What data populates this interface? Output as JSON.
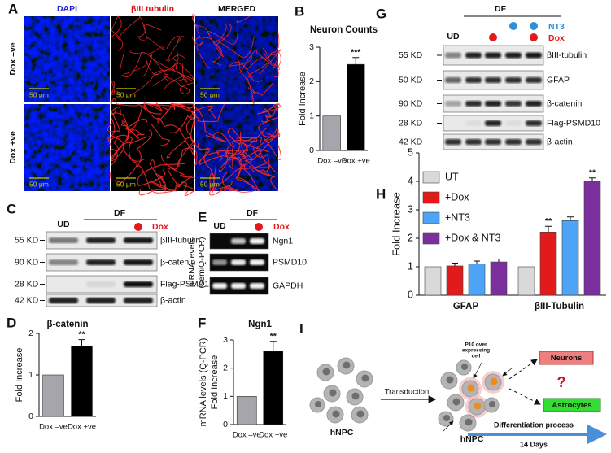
{
  "panel_labels": [
    "A",
    "B",
    "C",
    "D",
    "E",
    "F",
    "G",
    "H",
    "I"
  ],
  "microscopy": {
    "columns": [
      "DAPI",
      "βIII tubulin",
      "MERGED"
    ],
    "rows": [
      "Dox –ve",
      "Dox +ve"
    ],
    "scale_bar": "50 μm"
  },
  "blot_c": {
    "lanes": [
      "UD"
    ],
    "group": "DF",
    "treatment": "Dox",
    "rows": [
      {
        "size": "55 KD",
        "target": "βIII-tubulin"
      },
      {
        "size": "90 KD",
        "target": "β-catenin"
      },
      {
        "size": "28 KD",
        "target": "Flag-PSMD10"
      },
      {
        "size": "42 KD",
        "target": "β-actin"
      }
    ]
  },
  "gel_e": {
    "ylabel": [
      "mRNA levels",
      "(semiQ-PCR)"
    ],
    "lanes": [
      "UD"
    ],
    "group": "DF",
    "treatment": "Dox",
    "rows": [
      "Ngn1",
      "PSMD10",
      "GAPDH"
    ]
  },
  "blot_g": {
    "lanes": [
      "UD"
    ],
    "group": "DF",
    "treatments": [
      "NT3",
      "Dox"
    ],
    "rows": [
      {
        "size": "55 KD",
        "target": "βIII-tubulin"
      },
      {
        "size": "50 KD",
        "target": "GFAP"
      },
      {
        "size": "90 KD",
        "target": "β-catenin"
      },
      {
        "size": "28 KD",
        "target": "Flag-PSMD10"
      },
      {
        "size": "42 KD",
        "target": "β-actin"
      }
    ]
  },
  "chart_data": [
    {
      "type": "bar",
      "title": "Neuron Counts",
      "ylabel": [
        "Fold Increase"
      ],
      "categories": [
        "Dox –ve",
        "Dox +ve"
      ],
      "values": [
        1,
        2.5
      ],
      "errors": [
        null,
        0.2
      ],
      "colors": [
        "#a5a5ab",
        "#000000"
      ],
      "annotations": [
        null,
        "***"
      ],
      "ylim": [
        0,
        3
      ],
      "yticks": [
        0,
        1,
        2,
        3
      ]
    },
    {
      "type": "bar",
      "title": "β-catenin",
      "ylabel": [
        "Fold Increase"
      ],
      "categories": [
        "Dox –ve",
        "Dox +ve"
      ],
      "values": [
        1,
        1.7
      ],
      "errors": [
        null,
        0.15
      ],
      "colors": [
        "#a5a5ab",
        "#000000"
      ],
      "annotations": [
        null,
        "**"
      ],
      "ylim": [
        0,
        2
      ],
      "yticks": [
        0,
        1,
        2
      ]
    },
    {
      "type": "bar",
      "title": "Ngn1",
      "ylabel": [
        "mRNA levels (Q-PCR)",
        "Fold Increase"
      ],
      "categories": [
        "Dox –ve",
        "Dox +ve"
      ],
      "values": [
        1,
        2.6
      ],
      "errors": [
        null,
        0.35
      ],
      "colors": [
        "#a5a5ab",
        "#000000"
      ],
      "annotations": [
        null,
        "**"
      ],
      "ylim": [
        0,
        3
      ],
      "yticks": [
        0,
        1,
        2,
        3
      ]
    },
    {
      "type": "grouped_bar",
      "ylabel": [
        "Fold Increase"
      ],
      "categories": [
        "GFAP",
        "βIII-Tubulin"
      ],
      "legend": "upper left",
      "ylim": [
        0,
        5
      ],
      "yticks": [
        0,
        1,
        2,
        3,
        4,
        5
      ],
      "series": [
        {
          "name": "UT",
          "color": "#d9d9d9",
          "values": [
            1,
            1
          ],
          "errors": [
            null,
            null
          ],
          "annotations": [
            null,
            null
          ]
        },
        {
          "name": "+Dox",
          "color": "#e31a1c",
          "values": [
            1.03,
            2.22
          ],
          "errors": [
            0.1,
            0.2
          ],
          "annotations": [
            null,
            "**"
          ]
        },
        {
          "name": "+NT3",
          "color": "#4da3f5",
          "values": [
            1.1,
            2.62
          ],
          "errors": [
            0.1,
            0.13
          ],
          "annotations": [
            null,
            null
          ]
        },
        {
          "name": "+Dox & NT3",
          "color": "#7b2f9e",
          "values": [
            1.17,
            4.0
          ],
          "errors": [
            0.1,
            0.12
          ],
          "annotations": [
            null,
            "**"
          ]
        }
      ]
    }
  ],
  "diagram": {
    "left_label": "hNPC",
    "arrow_label": "Transduction",
    "right_label": "hNPC",
    "callout": [
      "P10 over",
      "expressing",
      "cell"
    ],
    "outcomes": [
      "Neurons",
      "Astrocytes"
    ],
    "question": "?",
    "process": "Differentiation process",
    "duration": "14 Days"
  }
}
